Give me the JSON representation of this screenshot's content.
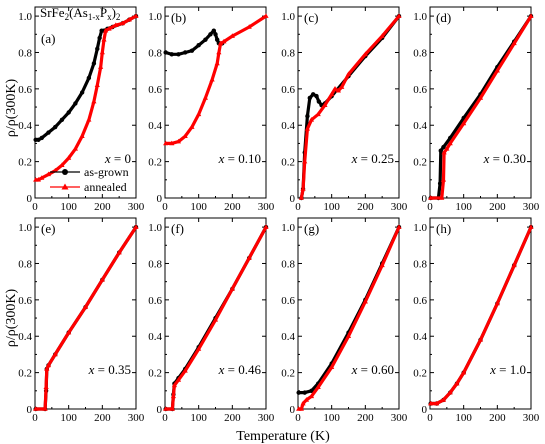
{
  "figure": {
    "compound_label": "SrFe2(As1-xPx)2",
    "xlabel": "Temperature (K)",
    "ylabel": "ρ/ρ(300K)"
  },
  "legend": {
    "items": [
      {
        "label": "as-grown",
        "color": "#000000",
        "marker": "circle"
      },
      {
        "label": "annealed",
        "color": "#ff0000",
        "marker": "triangle"
      }
    ]
  },
  "chart_data": [
    {
      "type": "line",
      "panel": "(a)",
      "x_label_text": "x = 0",
      "xlim": [
        0,
        300
      ],
      "ylim": [
        0,
        1.05
      ],
      "x_ticks": [
        "0",
        "100",
        "200",
        "300"
      ],
      "y_ticks": [
        "0",
        "0.2",
        "0.4",
        "0.6",
        "0.8",
        "1.0"
      ],
      "series": [
        {
          "name": "as-grown",
          "color": "#000000",
          "marker": "circle",
          "points": [
            [
              2,
              0.32
            ],
            [
              10,
              0.32
            ],
            [
              20,
              0.33
            ],
            [
              40,
              0.36
            ],
            [
              60,
              0.39
            ],
            [
              80,
              0.43
            ],
            [
              100,
              0.47
            ],
            [
              120,
              0.52
            ],
            [
              140,
              0.58
            ],
            [
              160,
              0.66
            ],
            [
              175,
              0.74
            ],
            [
              185,
              0.82
            ],
            [
              192,
              0.88
            ],
            [
              198,
              0.92
            ],
            [
              205,
              0.92
            ],
            [
              215,
              0.93
            ],
            [
              230,
              0.94
            ],
            [
              260,
              0.96
            ],
            [
              280,
              0.98
            ],
            [
              300,
              1.0
            ]
          ]
        },
        {
          "name": "annealed",
          "color": "#ff0000",
          "marker": "triangle",
          "points": [
            [
              2,
              0.1
            ],
            [
              10,
              0.1
            ],
            [
              20,
              0.11
            ],
            [
              40,
              0.13
            ],
            [
              60,
              0.15
            ],
            [
              80,
              0.18
            ],
            [
              100,
              0.22
            ],
            [
              120,
              0.27
            ],
            [
              140,
              0.34
            ],
            [
              160,
              0.43
            ],
            [
              175,
              0.53
            ],
            [
              185,
              0.62
            ],
            [
              195,
              0.72
            ],
            [
              200,
              0.8
            ],
            [
              205,
              0.87
            ],
            [
              210,
              0.92
            ],
            [
              220,
              0.93
            ],
            [
              240,
              0.95
            ],
            [
              260,
              0.96
            ],
            [
              280,
              0.98
            ],
            [
              300,
              1.0
            ]
          ]
        }
      ]
    },
    {
      "type": "line",
      "panel": "(b)",
      "x_label_text": "x = 0.10",
      "xlim": [
        0,
        300
      ],
      "ylim": [
        0,
        1.05
      ],
      "x_ticks": [
        "0",
        "100",
        "200",
        "300"
      ],
      "y_ticks": [
        "0",
        "0.2",
        "0.4",
        "0.6",
        "0.8",
        "1.0"
      ],
      "series": [
        {
          "name": "as-grown",
          "color": "#000000",
          "marker": "circle",
          "points": [
            [
              2,
              0.8
            ],
            [
              20,
              0.79
            ],
            [
              40,
              0.79
            ],
            [
              60,
              0.8
            ],
            [
              80,
              0.81
            ],
            [
              100,
              0.84
            ],
            [
              120,
              0.87
            ],
            [
              135,
              0.9
            ],
            [
              145,
              0.92
            ],
            [
              150,
              0.9
            ],
            [
              155,
              0.87
            ],
            [
              160,
              0.85
            ],
            [
              170,
              0.85
            ]
          ]
        },
        {
          "name": "annealed",
          "color": "#ff0000",
          "marker": "triangle",
          "points": [
            [
              2,
              0.3
            ],
            [
              20,
              0.3
            ],
            [
              40,
              0.31
            ],
            [
              60,
              0.34
            ],
            [
              80,
              0.39
            ],
            [
              100,
              0.46
            ],
            [
              120,
              0.55
            ],
            [
              140,
              0.65
            ],
            [
              155,
              0.74
            ],
            [
              160,
              0.8
            ],
            [
              165,
              0.85
            ],
            [
              175,
              0.86
            ],
            [
              200,
              0.89
            ],
            [
              250,
              0.94
            ],
            [
              300,
              1.0
            ]
          ]
        }
      ]
    },
    {
      "type": "line",
      "panel": "(c)",
      "x_label_text": "x = 0.25",
      "xlim": [
        0,
        300
      ],
      "ylim": [
        0,
        1.05
      ],
      "x_ticks": [
        "0",
        "100",
        "200",
        "300"
      ],
      "y_ticks": [
        "0",
        "0.2",
        "0.4",
        "0.6",
        "0.8",
        "1.0"
      ],
      "series": [
        {
          "name": "as-grown",
          "color": "#000000",
          "marker": "circle",
          "points": [
            [
              10,
              0.0
            ],
            [
              15,
              0.05
            ],
            [
              20,
              0.25
            ],
            [
              28,
              0.45
            ],
            [
              35,
              0.55
            ],
            [
              45,
              0.57
            ],
            [
              55,
              0.56
            ],
            [
              62,
              0.53
            ],
            [
              70,
              0.51
            ],
            [
              80,
              0.52
            ],
            [
              100,
              0.56
            ],
            [
              150,
              0.67
            ],
            [
              200,
              0.78
            ],
            [
              250,
              0.88
            ],
            [
              300,
              1.0
            ]
          ]
        },
        {
          "name": "annealed",
          "color": "#ff0000",
          "marker": "triangle",
          "points": [
            [
              10,
              0.0
            ],
            [
              15,
              0.05
            ],
            [
              20,
              0.2
            ],
            [
              28,
              0.38
            ],
            [
              40,
              0.43
            ],
            [
              60,
              0.46
            ],
            [
              80,
              0.51
            ],
            [
              100,
              0.57
            ],
            [
              110,
              0.6
            ],
            [
              120,
              0.59
            ],
            [
              130,
              0.61
            ],
            [
              150,
              0.68
            ],
            [
              200,
              0.79
            ],
            [
              250,
              0.89
            ],
            [
              300,
              1.0
            ]
          ]
        }
      ]
    },
    {
      "type": "line",
      "panel": "(d)",
      "x_label_text": "x = 0.30",
      "xlim": [
        0,
        300
      ],
      "ylim": [
        0,
        1.05
      ],
      "x_ticks": [
        "0",
        "100",
        "200",
        "300"
      ],
      "y_ticks": [
        "0",
        "0.2",
        "0.4",
        "0.6",
        "0.8",
        "1.0"
      ],
      "series": [
        {
          "name": "as-grown",
          "color": "#000000",
          "marker": "circle",
          "points": [
            [
              2,
              0.0
            ],
            [
              25,
              0.0
            ],
            [
              30,
              0.08
            ],
            [
              32,
              0.26
            ],
            [
              40,
              0.28
            ],
            [
              60,
              0.33
            ],
            [
              100,
              0.44
            ],
            [
              150,
              0.57
            ],
            [
              200,
              0.72
            ],
            [
              250,
              0.86
            ],
            [
              300,
              1.0
            ]
          ]
        },
        {
          "name": "annealed",
          "color": "#ff0000",
          "marker": "triangle",
          "points": [
            [
              2,
              0.0
            ],
            [
              35,
              0.0
            ],
            [
              40,
              0.1
            ],
            [
              42,
              0.25
            ],
            [
              50,
              0.27
            ],
            [
              60,
              0.3
            ],
            [
              100,
              0.41
            ],
            [
              150,
              0.55
            ],
            [
              200,
              0.7
            ],
            [
              250,
              0.85
            ],
            [
              300,
              1.0
            ]
          ]
        }
      ]
    },
    {
      "type": "line",
      "panel": "(e)",
      "x_label_text": "x = 0.35",
      "xlim": [
        0,
        300
      ],
      "ylim": [
        0,
        1.05
      ],
      "x_ticks": [
        "0",
        "100",
        "200",
        "300"
      ],
      "y_ticks": [
        "0",
        "0.2",
        "0.4",
        "0.6",
        "0.8",
        "1.0"
      ],
      "series": [
        {
          "name": "as-grown",
          "color": "#000000",
          "marker": "circle",
          "points": [
            [
              2,
              0.0
            ],
            [
              30,
              0.0
            ],
            [
              33,
              0.1
            ],
            [
              35,
              0.22
            ],
            [
              40,
              0.24
            ],
            [
              60,
              0.3
            ],
            [
              100,
              0.42
            ],
            [
              150,
              0.56
            ],
            [
              200,
              0.71
            ],
            [
              250,
              0.86
            ],
            [
              300,
              1.0
            ]
          ]
        },
        {
          "name": "annealed",
          "color": "#ff0000",
          "marker": "triangle",
          "points": [
            [
              2,
              0.0
            ],
            [
              30,
              0.0
            ],
            [
              33,
              0.12
            ],
            [
              35,
              0.22
            ],
            [
              40,
              0.24
            ],
            [
              60,
              0.3
            ],
            [
              100,
              0.42
            ],
            [
              150,
              0.56
            ],
            [
              200,
              0.71
            ],
            [
              250,
              0.86
            ],
            [
              300,
              1.0
            ]
          ]
        }
      ]
    },
    {
      "type": "line",
      "panel": "(f)",
      "x_label_text": "x = 0.46",
      "xlim": [
        0,
        300
      ],
      "ylim": [
        0,
        1.05
      ],
      "x_ticks": [
        "0",
        "100",
        "200",
        "300"
      ],
      "y_ticks": [
        "0",
        "0.2",
        "0.4",
        "0.6",
        "0.8",
        "1.0"
      ],
      "series": [
        {
          "name": "as-grown",
          "color": "#000000",
          "marker": "circle",
          "points": [
            [
              2,
              0.0
            ],
            [
              22,
              0.0
            ],
            [
              25,
              0.08
            ],
            [
              28,
              0.14
            ],
            [
              40,
              0.17
            ],
            [
              60,
              0.22
            ],
            [
              100,
              0.34
            ],
            [
              150,
              0.5
            ],
            [
              200,
              0.66
            ],
            [
              250,
              0.83
            ],
            [
              300,
              1.0
            ]
          ]
        },
        {
          "name": "annealed",
          "color": "#ff0000",
          "marker": "triangle",
          "points": [
            [
              2,
              0.0
            ],
            [
              22,
              0.0
            ],
            [
              25,
              0.07
            ],
            [
              28,
              0.13
            ],
            [
              40,
              0.16
            ],
            [
              60,
              0.21
            ],
            [
              100,
              0.33
            ],
            [
              150,
              0.49
            ],
            [
              200,
              0.66
            ],
            [
              250,
              0.83
            ],
            [
              300,
              1.0
            ]
          ]
        }
      ]
    },
    {
      "type": "line",
      "panel": "(g)",
      "x_label_text": "x = 0.60",
      "xlim": [
        0,
        300
      ],
      "ylim": [
        0,
        1.05
      ],
      "x_ticks": [
        "0",
        "100",
        "200",
        "300"
      ],
      "y_ticks": [
        "0",
        "0.2",
        "0.4",
        "0.6",
        "0.8",
        "1.0"
      ],
      "series": [
        {
          "name": "as-grown",
          "color": "#000000",
          "marker": "circle",
          "points": [
            [
              2,
              0.09
            ],
            [
              20,
              0.09
            ],
            [
              40,
              0.1
            ],
            [
              60,
              0.14
            ],
            [
              100,
              0.25
            ],
            [
              150,
              0.42
            ],
            [
              200,
              0.6
            ],
            [
              250,
              0.8
            ],
            [
              300,
              1.0
            ]
          ]
        },
        {
          "name": "annealed",
          "color": "#ff0000",
          "marker": "triangle",
          "points": [
            [
              2,
              0.0
            ],
            [
              10,
              0.0
            ],
            [
              15,
              0.03
            ],
            [
              25,
              0.05
            ],
            [
              40,
              0.07
            ],
            [
              60,
              0.12
            ],
            [
              100,
              0.23
            ],
            [
              150,
              0.4
            ],
            [
              200,
              0.59
            ],
            [
              250,
              0.79
            ],
            [
              300,
              1.0
            ]
          ]
        }
      ]
    },
    {
      "type": "line",
      "panel": "(h)",
      "x_label_text": "x = 1.0",
      "xlim": [
        0,
        300
      ],
      "ylim": [
        0,
        1.05
      ],
      "x_ticks": [
        "0",
        "100",
        "200",
        "300"
      ],
      "y_ticks": [
        "0",
        "0.2",
        "0.4",
        "0.6",
        "0.8",
        "1.0"
      ],
      "series": [
        {
          "name": "as-grown",
          "color": "#000000",
          "marker": "circle",
          "points": [
            [
              2,
              0.03
            ],
            [
              20,
              0.03
            ],
            [
              40,
              0.05
            ],
            [
              60,
              0.09
            ],
            [
              80,
              0.14
            ],
            [
              100,
              0.2
            ],
            [
              150,
              0.38
            ],
            [
              200,
              0.58
            ],
            [
              250,
              0.79
            ],
            [
              300,
              1.0
            ]
          ]
        },
        {
          "name": "annealed",
          "color": "#ff0000",
          "marker": "triangle",
          "points": [
            [
              2,
              0.03
            ],
            [
              20,
              0.03
            ],
            [
              40,
              0.05
            ],
            [
              60,
              0.09
            ],
            [
              80,
              0.14
            ],
            [
              100,
              0.2
            ],
            [
              150,
              0.38
            ],
            [
              200,
              0.58
            ],
            [
              250,
              0.79
            ],
            [
              300,
              1.0
            ]
          ]
        }
      ]
    }
  ]
}
